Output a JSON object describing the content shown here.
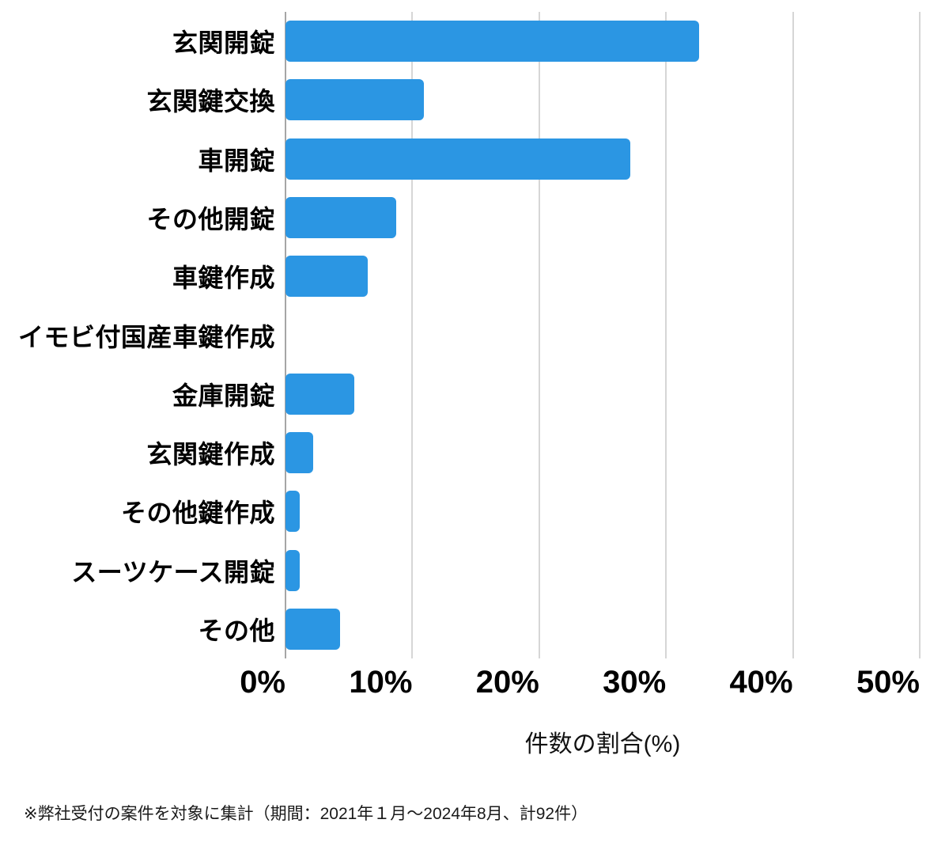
{
  "chart_data": {
    "type": "bar",
    "orientation": "horizontal",
    "title": "",
    "categories": [
      "玄関開錠",
      "玄関鍵交換",
      "車開錠",
      "その他開錠",
      "車鍵作成",
      "イモビ付国産車鍵作成",
      "金庫開錠",
      "玄関鍵作成",
      "その他鍵作成",
      "スーツケース開錠",
      "その他"
    ],
    "values": [
      32.6,
      10.9,
      27.2,
      8.7,
      6.5,
      0,
      5.4,
      2.2,
      1.1,
      1.1,
      4.3
    ],
    "xlabel": "件数の割合(%)",
    "ylabel": "",
    "xlim": [
      0,
      50
    ],
    "xticks": [
      {
        "value": 0,
        "label": "0%"
      },
      {
        "value": 10,
        "label": "10%"
      },
      {
        "value": 20,
        "label": "20%"
      },
      {
        "value": 30,
        "label": "30%"
      },
      {
        "value": 40,
        "label": "40%"
      },
      {
        "value": 50,
        "label": "50%"
      }
    ],
    "grid": true,
    "legend": false,
    "bar_color": "#2B96E3",
    "gridline_color": "#d6d6d6",
    "axisline_color": "#a6a6a6",
    "label_color": "#000000"
  },
  "footnote": "※弊社受付の案件を対象に集計（期間：2021年１月～2024年8月、計92件）"
}
